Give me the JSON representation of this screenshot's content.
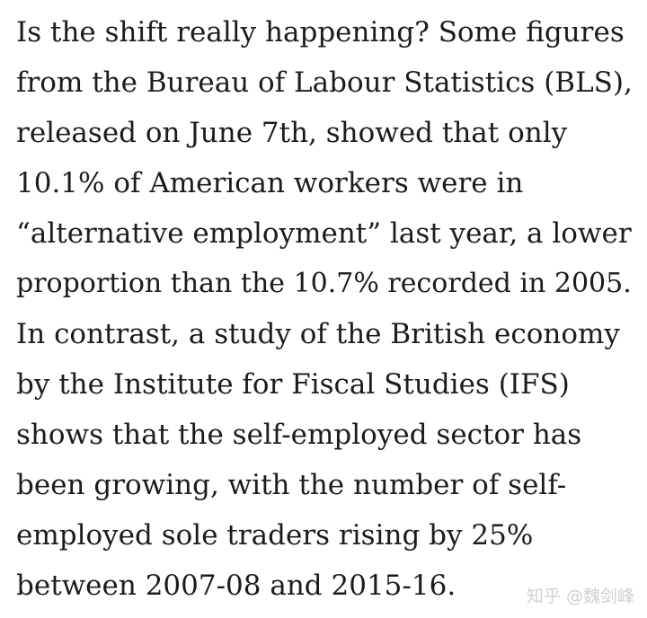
{
  "article": {
    "lines": [
      "Is the shift really happening? Some figures",
      "from the Bureau of Labour Statistics (BLS),",
      "released on June 7th, showed that only",
      "10.1% of American workers were in",
      "“alternative employment” last year, a lower",
      "proportion than the 10.7% recorded in 2005.",
      "In contrast, a study of the British economy",
      "by the Institute for Fiscal Studies (IFS)",
      "shows that the self-employed sector has",
      "been growing, with the number of self-",
      "employed sole traders rising by 25%",
      "between 2007-08 and 2015-16."
    ]
  },
  "watermark": {
    "site": "知乎",
    "author": "@魏剑峰"
  }
}
